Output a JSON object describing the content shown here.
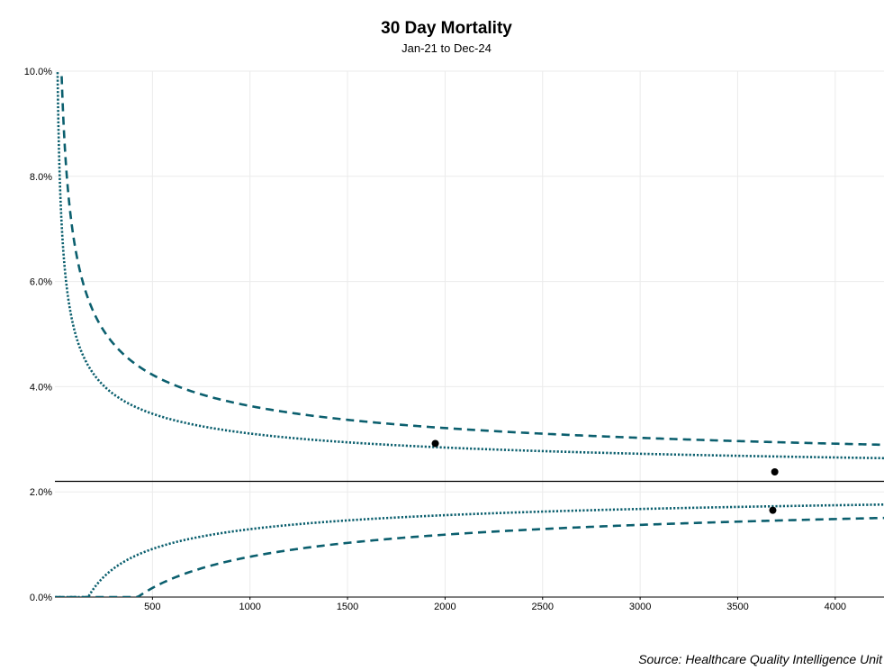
{
  "chart_data": {
    "type": "scatter",
    "title": "30 Day Mortality",
    "subtitle": "Jan-21 to Dec-24",
    "source": "Source: Healthcare Quality Intelligence Unit",
    "xlabel": "",
    "ylabel": "",
    "xlim": [
      0,
      4250
    ],
    "ylim": [
      0,
      0.1
    ],
    "x_ticks": [
      500,
      1000,
      1500,
      2000,
      2500,
      3000,
      3500,
      4000
    ],
    "x_tick_labels": [
      "500",
      "1000",
      "1500",
      "2000",
      "2500",
      "3000",
      "3500",
      "4000"
    ],
    "y_ticks": [
      0,
      0.02,
      0.04,
      0.06,
      0.08,
      0.1
    ],
    "y_tick_labels": [
      "0.0%",
      "2.0%",
      "4.0%",
      "6.0%",
      "8.0%",
      "10.0%"
    ],
    "grid": true,
    "center_line": 0.022,
    "limits": [
      {
        "style": "dotted",
        "z": 1.96
      },
      {
        "style": "dashed",
        "z": 3.09
      }
    ],
    "points": [
      {
        "x": 1950,
        "y": 0.0292
      },
      {
        "x": 3690,
        "y": 0.0238
      },
      {
        "x": 3680,
        "y": 0.0165
      }
    ],
    "colors": {
      "limits": "#0b5f6e",
      "center": "#000000",
      "points": "#000000",
      "grid": "#ebebeb"
    }
  }
}
